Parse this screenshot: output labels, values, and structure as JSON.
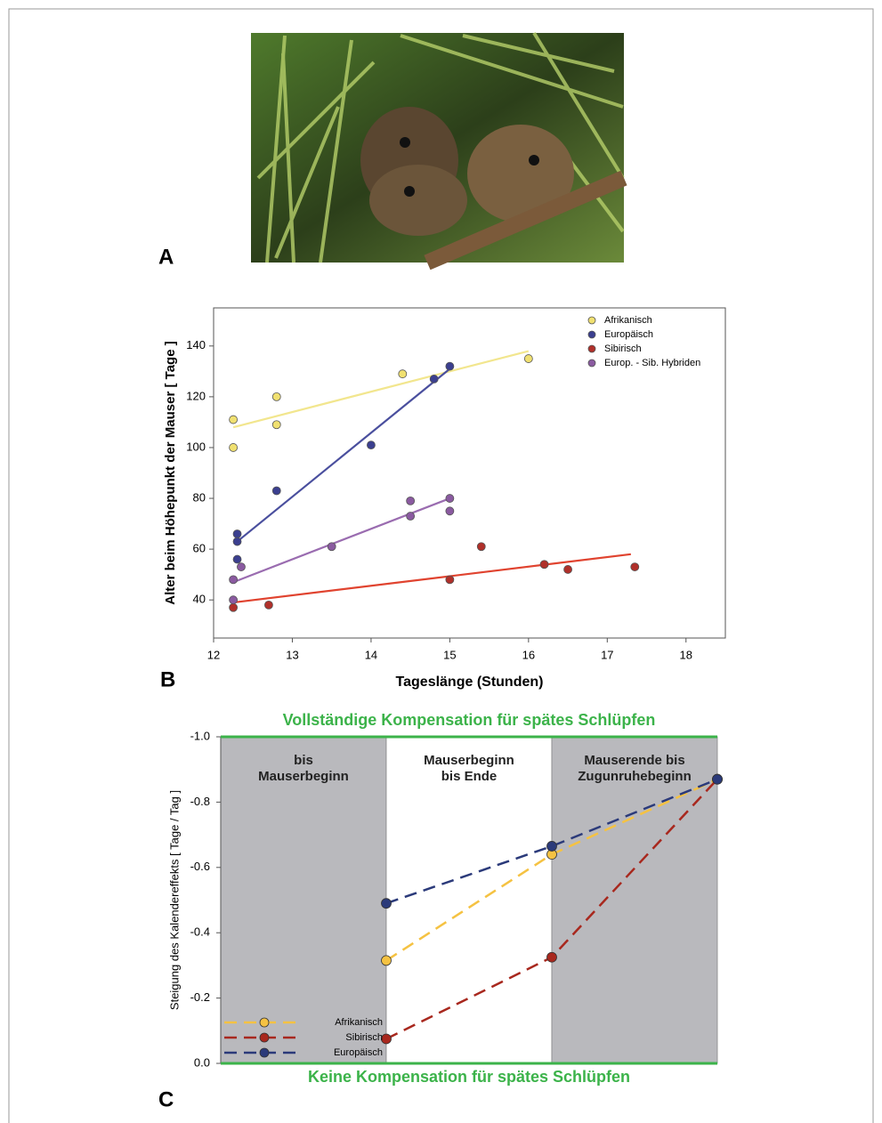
{
  "photo": {
    "panel_label": "A"
  },
  "chart_data": [
    {
      "type": "scatter",
      "panel_label": "B",
      "x_label": "Tageslänge (Stunden)",
      "y_label": "Alter beim Höhepunkt der Mauser [ Tage ]",
      "xlim": [
        12,
        18.5
      ],
      "xticks": [
        12,
        13,
        14,
        15,
        16,
        17,
        18
      ],
      "ylim": [
        25,
        155
      ],
      "yticks": [
        40,
        60,
        80,
        100,
        120,
        140
      ],
      "legend": "top-right",
      "series": [
        {
          "name": "Afrikanisch",
          "color": "#f0e070",
          "line_color": "#f2e68e",
          "x": [
            12.25,
            12.25,
            12.8,
            12.8,
            14.4,
            16
          ],
          "values": [
            111,
            100,
            120,
            109,
            129,
            135
          ],
          "trend_x": [
            12.25,
            16
          ],
          "trend_y": [
            108,
            138
          ]
        },
        {
          "name": "Europäisch",
          "color": "#3b3f8f",
          "line_color": "#4a4f9e",
          "x": [
            12.3,
            12.3,
            12.3,
            12.8,
            14,
            14.8,
            15
          ],
          "values": [
            66,
            63,
            56,
            83,
            101,
            127,
            132
          ],
          "trend_x": [
            12.3,
            15
          ],
          "trend_y": [
            63,
            131
          ]
        },
        {
          "name": "Sibirisch",
          "color": "#b0302a",
          "line_color": "#e0432f",
          "x": [
            12.25,
            12.7,
            15,
            15.4,
            16.2,
            16.5,
            17.35
          ],
          "values": [
            37,
            38,
            48,
            61,
            54,
            52,
            53
          ],
          "trend_x": [
            12.25,
            17.3
          ],
          "trend_y": [
            39,
            58
          ]
        },
        {
          "name": "Europ. - Sib. Hybriden",
          "color": "#8a5aa0",
          "line_color": "#9a6cb0",
          "x": [
            12.25,
            12.25,
            12.35,
            13.5,
            14.5,
            14.5,
            15,
            15
          ],
          "values": [
            48,
            40,
            53,
            61,
            79,
            73,
            80,
            75
          ],
          "trend_x": [
            12.25,
            15
          ],
          "trend_y": [
            47,
            80
          ]
        }
      ]
    },
    {
      "type": "line",
      "panel_label": "C",
      "y_label": "Steigung des Kalendereffekts [ Tage / Tag ]",
      "top_annotation": "Vollständige Kompensation für spätes Schlüpfen",
      "bottom_annotation": "Keine Kompensation für spätes Schlüpfen",
      "annotation_color": "#3cb34a",
      "categories": [
        "bis\nMauserbeginn",
        "Mauserbeginn\nbis Ende",
        "Mauserende bis\nZugunruhebeginn"
      ],
      "band_colors": [
        "#b9b9bd",
        "#ffffff",
        "#b9b9bd"
      ],
      "ylim": [
        0,
        -1
      ],
      "yticks": [
        {
          "value": -1,
          "label": "-1.0"
        },
        -0.8,
        -0.6,
        -0.4,
        -0.2,
        {
          "value": 0,
          "label": "0.0"
        }
      ],
      "legend": "bottom-left",
      "series": [
        {
          "name": "Afrikanisch",
          "color": "#f5c242",
          "values": [
            -0.315,
            -0.64,
            -0.87
          ]
        },
        {
          "name": "Sibirisch",
          "color": "#a8281e",
          "values": [
            -0.075,
            -0.325,
            -0.87
          ]
        },
        {
          "name": "Europäisch",
          "color": "#2b3a7a",
          "values": [
            -0.49,
            -0.665,
            -0.87
          ]
        }
      ]
    }
  ]
}
